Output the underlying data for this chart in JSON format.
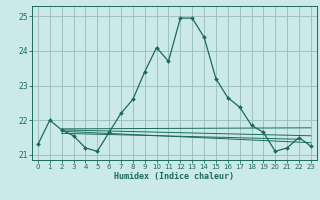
{
  "xlabel": "Humidex (Indice chaleur)",
  "bg_color": "#cce9e9",
  "grid_color": "#99bbbb",
  "line_color": "#1a6b5a",
  "xlim": [
    -0.5,
    23.5
  ],
  "ylim": [
    20.85,
    25.3
  ],
  "yticks": [
    21,
    22,
    23,
    24,
    25
  ],
  "xticks": [
    0,
    1,
    2,
    3,
    4,
    5,
    6,
    7,
    8,
    9,
    10,
    11,
    12,
    13,
    14,
    15,
    16,
    17,
    18,
    19,
    20,
    21,
    22,
    23
  ],
  "main_line_x": [
    0,
    1,
    2,
    3,
    4,
    5,
    6,
    7,
    8,
    9,
    10,
    11,
    12,
    13,
    14,
    15,
    16,
    17,
    18,
    19,
    20,
    21,
    22,
    23
  ],
  "main_line_y": [
    21.3,
    22.0,
    21.72,
    21.55,
    21.2,
    21.1,
    21.65,
    22.2,
    22.6,
    23.4,
    24.1,
    23.7,
    24.95,
    24.95,
    24.4,
    23.2,
    22.65,
    22.38,
    21.85,
    21.65,
    21.1,
    21.2,
    21.5,
    21.25
  ],
  "flat_lines": [
    {
      "x": [
        2,
        23
      ],
      "y": [
        21.75,
        21.78
      ]
    },
    {
      "x": [
        2,
        23
      ],
      "y": [
        21.72,
        21.55
      ]
    },
    {
      "x": [
        2,
        23
      ],
      "y": [
        21.68,
        21.35
      ]
    },
    {
      "x": [
        2,
        22
      ],
      "y": [
        21.62,
        21.45
      ]
    }
  ]
}
